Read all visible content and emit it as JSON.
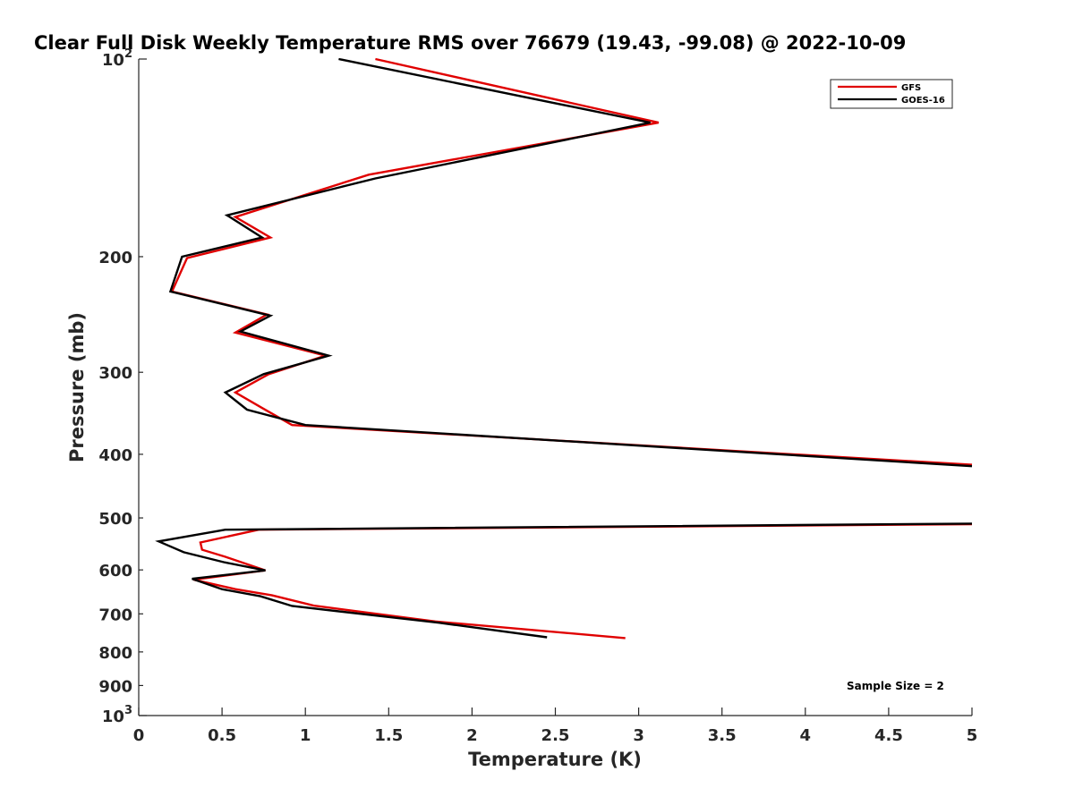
{
  "chart_data": {
    "type": "line",
    "title": "Clear Full Disk Weekly Temperature RMS over 76679 (19.43, -99.08) @ 2022-10-09",
    "xlabel": "Temperature (K)",
    "ylabel": "Pressure (mb)",
    "xlim": [
      0,
      5
    ],
    "ylim": [
      100,
      1000
    ],
    "yscale": "log",
    "y_reversed": true,
    "x_ticks": [
      0,
      0.5,
      1,
      1.5,
      2,
      2.5,
      3,
      3.5,
      4,
      4.5,
      5
    ],
    "x_tick_labels": [
      "0",
      "0.5",
      "1",
      "1.5",
      "2",
      "2.5",
      "3",
      "3.5",
      "4",
      "4.5",
      "5"
    ],
    "y_ticks": [
      100,
      200,
      300,
      400,
      500,
      600,
      700,
      800,
      900,
      1000
    ],
    "y_tick_labels": [
      {
        "value": 100,
        "base": "10",
        "exp": "2"
      },
      {
        "value": 200,
        "base": "200",
        "exp": ""
      },
      {
        "value": 300,
        "base": "300",
        "exp": ""
      },
      {
        "value": 400,
        "base": "400",
        "exp": ""
      },
      {
        "value": 500,
        "base": "500",
        "exp": ""
      },
      {
        "value": 600,
        "base": "600",
        "exp": ""
      },
      {
        "value": 700,
        "base": "700",
        "exp": ""
      },
      {
        "value": 800,
        "base": "800",
        "exp": ""
      },
      {
        "value": 900,
        "base": "900",
        "exp": ""
      },
      {
        "value": 1000,
        "base": "10",
        "exp": "3"
      }
    ],
    "grid": false,
    "legend_position": "top-right",
    "series": [
      {
        "name": "GFS",
        "color": "#e00000",
        "points": [
          [
            1.42,
            100
          ],
          [
            3.12,
            125
          ],
          [
            1.38,
            150
          ],
          [
            0.58,
            174
          ],
          [
            0.79,
            187
          ],
          [
            0.29,
            201
          ],
          [
            0.2,
            226
          ],
          [
            0.77,
            245
          ],
          [
            0.58,
            261
          ],
          [
            1.12,
            283
          ],
          [
            0.78,
            302
          ],
          [
            0.58,
            322
          ],
          [
            0.74,
            340
          ],
          [
            0.92,
            361
          ],
          [
            5.0,
            415
          ],
          [
            null,
            null
          ],
          [
            5.0,
            511
          ],
          [
            0.72,
            521
          ],
          [
            0.37,
            545
          ],
          [
            0.38,
            559
          ],
          [
            0.52,
            573
          ],
          [
            0.76,
            601
          ],
          [
            0.33,
            621
          ],
          [
            0.58,
            642
          ],
          [
            0.8,
            656
          ],
          [
            1.05,
            680
          ],
          [
            1.78,
            719
          ],
          [
            2.92,
            762
          ]
        ]
      },
      {
        "name": "GOES-16",
        "color": "#000000",
        "points": [
          [
            1.2,
            100
          ],
          [
            3.07,
            125
          ],
          [
            1.42,
            152
          ],
          [
            0.53,
            173
          ],
          [
            0.74,
            187
          ],
          [
            0.26,
            200
          ],
          [
            0.19,
            226
          ],
          [
            0.79,
            246
          ],
          [
            0.61,
            260
          ],
          [
            1.14,
            283
          ],
          [
            0.75,
            302
          ],
          [
            0.52,
            322
          ],
          [
            0.65,
            342
          ],
          [
            1.0,
            361
          ],
          [
            5.0,
            417
          ],
          [
            null,
            null
          ],
          [
            5.0,
            510
          ],
          [
            0.52,
            521
          ],
          [
            0.12,
            543
          ],
          [
            0.27,
            564
          ],
          [
            0.51,
            584
          ],
          [
            0.76,
            601
          ],
          [
            0.32,
            619
          ],
          [
            0.5,
            642
          ],
          [
            0.73,
            658
          ],
          [
            0.92,
            681
          ],
          [
            1.8,
            722
          ],
          [
            2.45,
            760
          ]
        ]
      }
    ],
    "annotation": "Sample Size = 2"
  }
}
